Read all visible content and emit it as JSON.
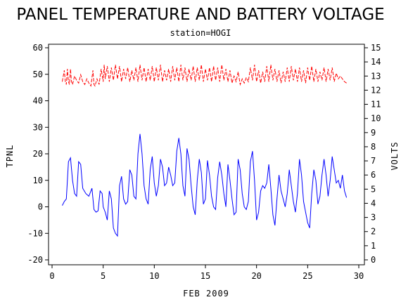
{
  "chart_data": {
    "type": "line",
    "title": "PANEL TEMPERATURE AND BATTERY VOLTAGE",
    "subtitle": "station=HOGI",
    "xlabel": "FEB 2009",
    "ylabel_left": "TPNL",
    "ylabel_right": "VOLTS",
    "xlim": [
      0,
      30
    ],
    "ylim_left": [
      -20,
      60
    ],
    "ylim_right": [
      0,
      15
    ],
    "x_ticks": [
      0,
      5,
      10,
      15,
      20,
      25,
      30
    ],
    "y_left_ticks": [
      -20,
      -10,
      0,
      10,
      20,
      30,
      40,
      50,
      60
    ],
    "y_right_ticks": [
      0,
      1,
      2,
      3,
      4,
      5,
      6,
      7,
      8,
      9,
      10,
      11,
      12,
      13,
      14,
      15
    ],
    "grid": false,
    "series": [
      {
        "axis": "left",
        "color": "#0000ff",
        "points": [
          [
            1.0,
            0.5
          ],
          [
            1.2,
            2
          ],
          [
            1.4,
            3
          ],
          [
            1.6,
            17
          ],
          [
            1.8,
            18.5
          ],
          [
            2.0,
            10
          ],
          [
            2.2,
            5
          ],
          [
            2.4,
            4
          ],
          [
            2.6,
            17
          ],
          [
            2.8,
            16
          ],
          [
            3.0,
            7
          ],
          [
            3.3,
            5
          ],
          [
            3.6,
            4
          ],
          [
            3.9,
            7
          ],
          [
            4.1,
            -1
          ],
          [
            4.3,
            -2
          ],
          [
            4.5,
            -1.5
          ],
          [
            4.7,
            6
          ],
          [
            4.9,
            5
          ],
          [
            5.0,
            0
          ],
          [
            5.2,
            -2
          ],
          [
            5.4,
            -5
          ],
          [
            5.6,
            6
          ],
          [
            5.8,
            3
          ],
          [
            6.0,
            -8
          ],
          [
            6.2,
            -10
          ],
          [
            6.4,
            -11
          ],
          [
            6.6,
            8
          ],
          [
            6.8,
            11.5
          ],
          [
            7.0,
            3
          ],
          [
            7.2,
            1
          ],
          [
            7.4,
            2
          ],
          [
            7.6,
            14
          ],
          [
            7.8,
            12
          ],
          [
            8.0,
            4
          ],
          [
            8.2,
            3
          ],
          [
            8.4,
            20
          ],
          [
            8.6,
            27.5
          ],
          [
            8.8,
            20
          ],
          [
            9.0,
            8
          ],
          [
            9.2,
            3
          ],
          [
            9.4,
            1
          ],
          [
            9.6,
            14
          ],
          [
            9.8,
            19
          ],
          [
            10.0,
            9
          ],
          [
            10.2,
            4
          ],
          [
            10.4,
            8
          ],
          [
            10.6,
            18
          ],
          [
            10.8,
            15
          ],
          [
            11.0,
            8
          ],
          [
            11.2,
            9
          ],
          [
            11.4,
            15
          ],
          [
            11.6,
            12
          ],
          [
            11.8,
            8
          ],
          [
            12.0,
            9
          ],
          [
            12.2,
            21
          ],
          [
            12.4,
            26
          ],
          [
            12.6,
            20
          ],
          [
            12.8,
            8
          ],
          [
            13.0,
            4
          ],
          [
            13.2,
            22
          ],
          [
            13.4,
            18
          ],
          [
            13.6,
            8
          ],
          [
            13.8,
            0
          ],
          [
            14.0,
            -3
          ],
          [
            14.2,
            10
          ],
          [
            14.4,
            18
          ],
          [
            14.6,
            13
          ],
          [
            14.8,
            1
          ],
          [
            15.0,
            3
          ],
          [
            15.2,
            17.5
          ],
          [
            15.4,
            12
          ],
          [
            15.6,
            4
          ],
          [
            15.8,
            0
          ],
          [
            16.0,
            -1
          ],
          [
            16.2,
            11
          ],
          [
            16.4,
            17
          ],
          [
            16.6,
            12
          ],
          [
            16.8,
            5
          ],
          [
            17.0,
            0
          ],
          [
            17.2,
            16
          ],
          [
            17.4,
            10
          ],
          [
            17.6,
            3
          ],
          [
            17.8,
            -3
          ],
          [
            18.0,
            -2
          ],
          [
            18.2,
            18
          ],
          [
            18.4,
            14
          ],
          [
            18.6,
            5
          ],
          [
            18.8,
            0
          ],
          [
            19.0,
            -1
          ],
          [
            19.2,
            2
          ],
          [
            19.4,
            17
          ],
          [
            19.6,
            21
          ],
          [
            19.8,
            10
          ],
          [
            20.0,
            -5
          ],
          [
            20.2,
            -2
          ],
          [
            20.4,
            6
          ],
          [
            20.6,
            8
          ],
          [
            20.8,
            7
          ],
          [
            21.0,
            9
          ],
          [
            21.2,
            16
          ],
          [
            21.4,
            7
          ],
          [
            21.6,
            -3
          ],
          [
            21.8,
            -7
          ],
          [
            22.0,
            3
          ],
          [
            22.2,
            12
          ],
          [
            22.4,
            6
          ],
          [
            22.6,
            3
          ],
          [
            22.8,
            0
          ],
          [
            23.0,
            5
          ],
          [
            23.2,
            14
          ],
          [
            23.4,
            8
          ],
          [
            23.6,
            2
          ],
          [
            23.8,
            -2
          ],
          [
            24.0,
            5
          ],
          [
            24.2,
            18
          ],
          [
            24.4,
            12
          ],
          [
            24.6,
            2
          ],
          [
            24.8,
            -2
          ],
          [
            25.0,
            -6
          ],
          [
            25.2,
            -8
          ],
          [
            25.4,
            5
          ],
          [
            25.6,
            14
          ],
          [
            25.8,
            10
          ],
          [
            26.0,
            1
          ],
          [
            26.2,
            4
          ],
          [
            26.4,
            12
          ],
          [
            26.6,
            18
          ],
          [
            26.8,
            12
          ],
          [
            27.0,
            4
          ],
          [
            27.2,
            10
          ],
          [
            27.4,
            19
          ],
          [
            27.6,
            14
          ],
          [
            27.8,
            9
          ],
          [
            28.0,
            10
          ],
          [
            28.2,
            7
          ],
          [
            28.4,
            12
          ],
          [
            28.6,
            6
          ],
          [
            28.8,
            3.5
          ]
        ]
      },
      {
        "axis": "right",
        "color": "#ff0000",
        "points": [
          [
            1.0,
            12.6
          ],
          [
            1.2,
            13.4
          ],
          [
            1.3,
            12.6
          ],
          [
            1.4,
            12.4
          ],
          [
            1.5,
            13.5
          ],
          [
            1.6,
            12.6
          ],
          [
            1.7,
            12.4
          ],
          [
            1.8,
            13.5
          ],
          [
            1.9,
            12.6
          ],
          [
            2.0,
            12.4
          ],
          [
            2.2,
            13.0
          ],
          [
            2.4,
            12.7
          ],
          [
            2.6,
            12.5
          ],
          [
            2.8,
            13.1
          ],
          [
            3.0,
            12.6
          ],
          [
            3.2,
            12.4
          ],
          [
            3.4,
            12.8
          ],
          [
            3.6,
            12.5
          ],
          [
            3.8,
            12.3
          ],
          [
            4.0,
            13.4
          ],
          [
            4.1,
            12.4
          ],
          [
            4.2,
            12.3
          ],
          [
            4.4,
            12.8
          ],
          [
            4.6,
            12.4
          ],
          [
            4.8,
            13.5
          ],
          [
            5.0,
            12.6
          ],
          [
            5.1,
            13.8
          ],
          [
            5.2,
            12.8
          ],
          [
            5.4,
            13.7
          ],
          [
            5.6,
            12.6
          ],
          [
            5.8,
            13.6
          ],
          [
            6.0,
            12.7
          ],
          [
            6.2,
            13.8
          ],
          [
            6.4,
            12.8
          ],
          [
            6.6,
            13.7
          ],
          [
            6.8,
            12.6
          ],
          [
            7.0,
            13.5
          ],
          [
            7.2,
            12.8
          ],
          [
            7.4,
            13.6
          ],
          [
            7.6,
            12.6
          ],
          [
            7.8,
            13.4
          ],
          [
            8.0,
            12.7
          ],
          [
            8.2,
            13.6
          ],
          [
            8.4,
            12.6
          ],
          [
            8.6,
            13.8
          ],
          [
            8.8,
            12.7
          ],
          [
            9.0,
            13.6
          ],
          [
            9.2,
            12.6
          ],
          [
            9.4,
            13.5
          ],
          [
            9.6,
            12.7
          ],
          [
            9.8,
            13.7
          ],
          [
            10.0,
            12.6
          ],
          [
            10.2,
            13.6
          ],
          [
            10.4,
            12.7
          ],
          [
            10.6,
            13.8
          ],
          [
            10.8,
            12.6
          ],
          [
            11.0,
            13.4
          ],
          [
            11.2,
            12.7
          ],
          [
            11.4,
            13.5
          ],
          [
            11.6,
            12.6
          ],
          [
            11.8,
            13.7
          ],
          [
            12.0,
            12.7
          ],
          [
            12.2,
            13.6
          ],
          [
            12.4,
            12.6
          ],
          [
            12.6,
            13.8
          ],
          [
            12.8,
            12.7
          ],
          [
            13.0,
            13.6
          ],
          [
            13.2,
            12.6
          ],
          [
            13.4,
            13.5
          ],
          [
            13.6,
            12.7
          ],
          [
            13.8,
            13.7
          ],
          [
            14.0,
            12.6
          ],
          [
            14.2,
            13.6
          ],
          [
            14.4,
            12.7
          ],
          [
            14.6,
            13.8
          ],
          [
            14.8,
            12.6
          ],
          [
            15.0,
            13.5
          ],
          [
            15.2,
            12.7
          ],
          [
            15.4,
            13.6
          ],
          [
            15.6,
            12.6
          ],
          [
            15.8,
            13.7
          ],
          [
            16.0,
            12.7
          ],
          [
            16.2,
            13.6
          ],
          [
            16.4,
            12.6
          ],
          [
            16.6,
            13.8
          ],
          [
            16.8,
            12.7
          ],
          [
            17.0,
            13.5
          ],
          [
            17.2,
            12.6
          ],
          [
            17.4,
            13.4
          ],
          [
            17.6,
            12.5
          ],
          [
            17.8,
            13.0
          ],
          [
            18.0,
            12.6
          ],
          [
            18.2,
            13.3
          ],
          [
            18.4,
            12.4
          ],
          [
            18.6,
            12.8
          ],
          [
            18.8,
            12.5
          ],
          [
            19.0,
            12.9
          ],
          [
            19.2,
            12.6
          ],
          [
            19.4,
            13.6
          ],
          [
            19.6,
            12.7
          ],
          [
            19.8,
            13.8
          ],
          [
            20.0,
            12.6
          ],
          [
            20.2,
            13.4
          ],
          [
            20.4,
            12.5
          ],
          [
            20.6,
            13.3
          ],
          [
            20.8,
            12.6
          ],
          [
            21.0,
            13.7
          ],
          [
            21.2,
            12.6
          ],
          [
            21.4,
            13.8
          ],
          [
            21.6,
            12.7
          ],
          [
            21.8,
            13.5
          ],
          [
            22.0,
            12.6
          ],
          [
            22.2,
            13.4
          ],
          [
            22.4,
            12.5
          ],
          [
            22.6,
            13.3
          ],
          [
            22.8,
            12.6
          ],
          [
            23.0,
            13.6
          ],
          [
            23.2,
            12.6
          ],
          [
            23.4,
            13.7
          ],
          [
            23.6,
            12.7
          ],
          [
            23.8,
            13.5
          ],
          [
            24.0,
            12.6
          ],
          [
            24.2,
            13.6
          ],
          [
            24.4,
            12.6
          ],
          [
            24.6,
            13.4
          ],
          [
            24.8,
            12.5
          ],
          [
            25.0,
            13.6
          ],
          [
            25.2,
            12.7
          ],
          [
            25.4,
            13.7
          ],
          [
            25.6,
            12.6
          ],
          [
            25.8,
            13.5
          ],
          [
            26.0,
            12.6
          ],
          [
            26.2,
            13.3
          ],
          [
            26.4,
            12.7
          ],
          [
            26.6,
            13.6
          ],
          [
            26.8,
            12.6
          ],
          [
            27.0,
            13.5
          ],
          [
            27.2,
            12.7
          ],
          [
            27.4,
            13.6
          ],
          [
            27.6,
            12.6
          ],
          [
            27.8,
            13.2
          ],
          [
            28.0,
            12.8
          ],
          [
            28.2,
            13.0
          ],
          [
            28.4,
            12.8
          ],
          [
            28.6,
            12.6
          ],
          [
            28.8,
            12.5
          ]
        ]
      }
    ]
  }
}
